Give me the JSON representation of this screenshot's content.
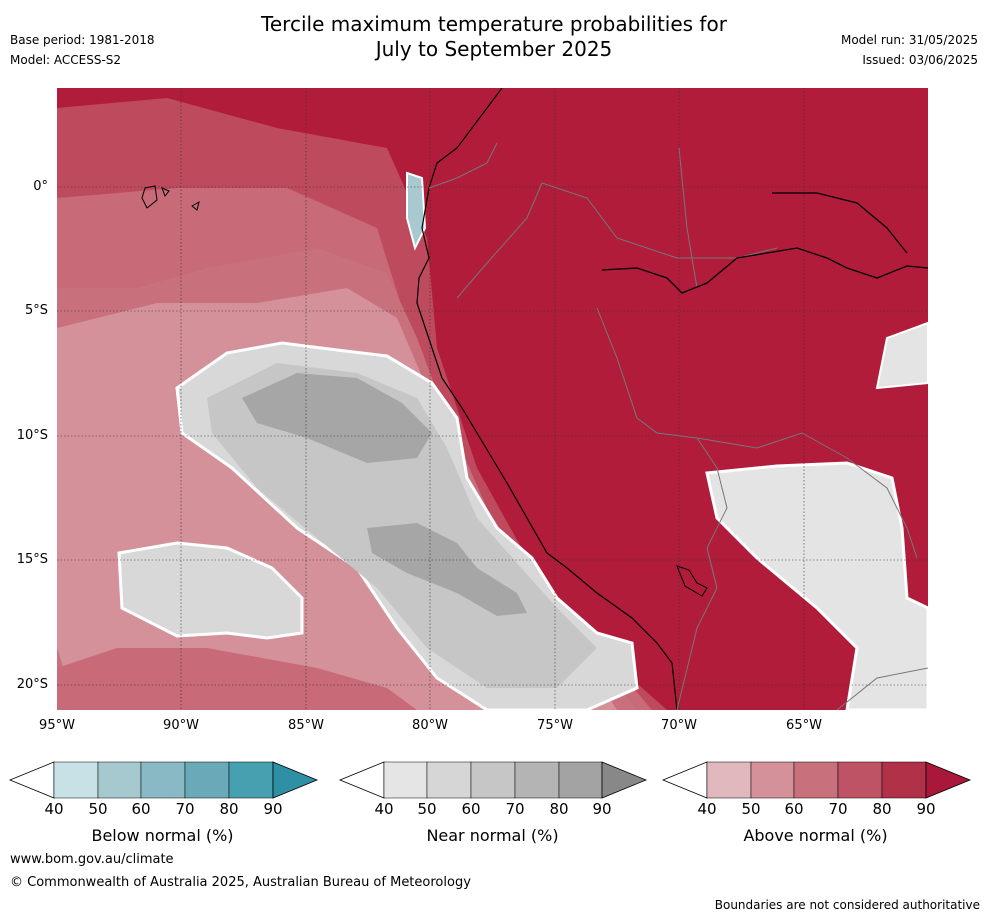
{
  "title_line1": "Tercile maximum temperature probabilities for",
  "title_line2": "July to September 2025",
  "base_period": "Base period: 1981-2018",
  "model": "Model: ACCESS-S2",
  "model_run": "Model run: 31/05/2025",
  "issued": "Issued: 03/06/2025",
  "map": {
    "lat_ticks": [
      "0°",
      "5°S",
      "10°S",
      "15°S",
      "20°S"
    ],
    "lon_ticks": [
      "95°W",
      "90°W",
      "85°W",
      "80°W",
      "75°W",
      "70°W",
      "65°W"
    ],
    "lon_range": [
      -95,
      -60
    ],
    "lat_range": [
      -21,
      4
    ],
    "colors": {
      "above": [
        "#e0b8be",
        "#d4919a",
        "#c9707d",
        "#be5366",
        "#b03148",
        "#a9173a"
      ],
      "near": [
        "#e5e5e5",
        "#d6d6d6",
        "#c6c6c6",
        "#b4b4b4",
        "#a3a3a3",
        "#888888"
      ],
      "below": [
        "#c8e1e6",
        "#a6c9d0",
        "#89b9c4",
        "#6aaab8",
        "#47a0b0",
        "#2f8fa4"
      ]
    }
  },
  "colorbars": {
    "ticks": [
      "40",
      "50",
      "60",
      "70",
      "80",
      "90"
    ],
    "below_label": "Below normal (%)",
    "near_label": "Near normal (%)",
    "above_label": "Above normal (%)"
  },
  "footer": {
    "website": "www.bom.gov.au/climate",
    "copyright": "© Commonwealth of Australia 2025, Australian Bureau of Meteorology",
    "boundaries_note": "Boundaries are not considered authoritative"
  }
}
